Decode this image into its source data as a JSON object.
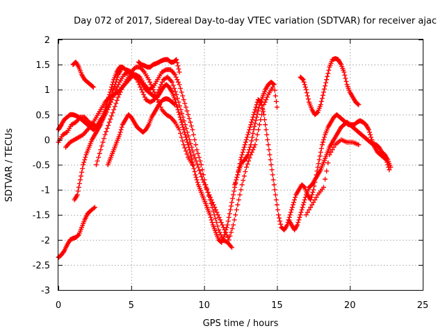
{
  "chart_data": {
    "type": "scatter",
    "title": "Day 072 of 2017, Sidereal Day-to-day VTEC variation (SDTVAR) for receiver ajac",
    "xlabel": "GPS time / hours",
    "ylabel": "SDTVAR / TECUs",
    "xlim": [
      0,
      25
    ],
    "ylim": [
      -3,
      2
    ],
    "xticks": [
      0,
      5,
      10,
      15,
      20,
      25
    ],
    "yticks": [
      -3,
      -2.5,
      -2,
      -1.5,
      -1,
      -0.5,
      0,
      0.5,
      1,
      1.5,
      2
    ],
    "xtick_labels": [
      "0",
      "5",
      "10",
      "15",
      "20",
      "25"
    ],
    "ytick_labels": [
      "-3",
      "-2.5",
      "-2",
      "-1.5",
      "-1",
      "-0.5",
      "0",
      "0.5",
      "1",
      "1.5",
      "2"
    ],
    "grid": true,
    "marker": "plus",
    "color": "#ff0000",
    "series": [
      {
        "name": "track-1",
        "x": [
          0,
          0.2,
          0.4,
          0.6,
          0.8,
          1.0,
          1.2,
          1.4,
          1.6,
          1.8,
          2.0,
          2.2,
          2.5
        ],
        "y": [
          -2.35,
          -2.3,
          -2.22,
          -2.1,
          -2.0,
          -1.97,
          -1.95,
          -1.9,
          -1.75,
          -1.6,
          -1.48,
          -1.42,
          -1.35
        ]
      },
      {
        "name": "track-2",
        "x": [
          0,
          0.1,
          0.2,
          0.4,
          0.6,
          0.8,
          1.0,
          1.2,
          1.4,
          1.6,
          1.8,
          2.0,
          2.2,
          2.4,
          2.6,
          2.8,
          3.0,
          3.2,
          3.4,
          3.6,
          3.8,
          4.0,
          4.2,
          4.4,
          4.6,
          4.8,
          5.0,
          5.2,
          5.4,
          5.6,
          5.8,
          6.0,
          6.2,
          6.4,
          6.6,
          6.8,
          7.0,
          7.2,
          7.4,
          7.6,
          7.8,
          8.0,
          8.2,
          8.4,
          8.6,
          8.8,
          9.0,
          9.2,
          9.4,
          9.6,
          9.8,
          10.0,
          10.2,
          10.4,
          10.6,
          10.8,
          11.0,
          11.2,
          11.4,
          11.6,
          11.8,
          12.0,
          12.2,
          12.4,
          12.6,
          12.8,
          13.0,
          13.2,
          13.4,
          13.6,
          13.8,
          14.0,
          14.2,
          14.4,
          14.6,
          14.8,
          15.0
        ],
        "y": [
          0.2,
          0.25,
          0.3,
          0.4,
          0.45,
          0.5,
          0.5,
          0.48,
          0.45,
          0.4,
          0.35,
          0.3,
          0.25,
          0.2,
          0.25,
          0.35,
          0.45,
          0.6,
          0.8,
          1.0,
          1.2,
          1.35,
          1.45,
          1.45,
          1.4,
          1.38,
          1.35,
          1.3,
          1.25,
          1.2,
          1.1,
          1.0,
          0.95,
          0.9,
          0.85,
          0.85,
          0.95,
          1.05,
          1.1,
          1.05,
          0.95,
          0.8,
          0.6,
          0.4,
          0.2,
          0.0,
          -0.2,
          -0.45,
          -0.7,
          -0.9,
          -1.05,
          -1.2,
          -1.35,
          -1.5,
          -1.7,
          -1.85,
          -2.0,
          -2.05,
          -1.9,
          -1.7,
          -1.4,
          -1.1,
          -0.8,
          -0.6,
          -0.45,
          -0.4,
          -0.3,
          -0.1,
          0.2,
          0.45,
          0.7,
          0.85,
          1.0,
          1.1,
          1.15,
          1.1,
          0.65
        ]
      },
      {
        "name": "track-3",
        "x": [
          0,
          0.3,
          0.6,
          0.9,
          1.2,
          1.5,
          1.8,
          2.1,
          2.4,
          2.7,
          3.0,
          3.3,
          3.6,
          3.9,
          4.2,
          4.5,
          4.8,
          5.1,
          5.4,
          5.7,
          6.0,
          6.3,
          6.6,
          6.9,
          7.2,
          7.5,
          7.8,
          8.1,
          8.4,
          8.7,
          9.0,
          9.3,
          9.6,
          9.9,
          10.2,
          10.5,
          10.8,
          11.1,
          11.4,
          11.7,
          12.0,
          12.3,
          12.6,
          12.9,
          13.2,
          13.5,
          13.8,
          14.1,
          14.4,
          14.7
        ],
        "y": [
          -0.05,
          0.1,
          0.15,
          0.3,
          0.35,
          0.45,
          0.45,
          0.35,
          0.3,
          0.25,
          0.4,
          0.55,
          0.75,
          0.95,
          1.15,
          1.3,
          1.35,
          1.3,
          1.2,
          1.0,
          0.8,
          0.75,
          0.8,
          1.0,
          1.2,
          1.25,
          1.15,
          0.9,
          0.6,
          0.3,
          0.0,
          -0.3,
          -0.55,
          -0.8,
          -1.0,
          -1.2,
          -1.4,
          -1.6,
          -1.8,
          -2.0,
          -1.7,
          -1.3,
          -0.9,
          -0.55,
          -0.3,
          -0.1,
          0.3,
          0.7,
          0.9,
          1.05
        ]
      },
      {
        "name": "track-4",
        "x": [
          0.5,
          0.8,
          1.1,
          1.4,
          1.7,
          2.0,
          2.3,
          2.6,
          2.9,
          3.2,
          3.5,
          3.8,
          4.1,
          4.4,
          4.7,
          5.0,
          5.3,
          5.6,
          5.9,
          6.2,
          6.5,
          6.8,
          7.1,
          7.4,
          7.7,
          8.0,
          8.3,
          8.6,
          8.9,
          9.2,
          9.5,
          9.8,
          10.1,
          10.4,
          10.7,
          11.0,
          11.3,
          11.6,
          11.9
        ],
        "y": [
          -0.15,
          -0.05,
          0.0,
          0.05,
          0.1,
          0.2,
          0.3,
          0.45,
          0.6,
          0.75,
          0.85,
          0.9,
          0.95,
          1.05,
          1.15,
          1.25,
          1.3,
          1.25,
          1.1,
          1.0,
          1.05,
          1.2,
          1.35,
          1.4,
          1.4,
          1.3,
          1.1,
          0.8,
          0.5,
          0.2,
          -0.2,
          -0.5,
          -0.9,
          -1.2,
          -1.5,
          -1.8,
          -2.0,
          -2.05,
          -2.15
        ]
      },
      {
        "name": "track-5",
        "x": [
          1.0,
          1.2,
          1.4,
          1.6,
          1.8,
          2.0,
          2.2,
          2.4
        ],
        "y": [
          1.5,
          1.55,
          1.45,
          1.3,
          1.2,
          1.15,
          1.1,
          1.05
        ]
      },
      {
        "name": "track-6",
        "x": [
          1.1,
          1.3,
          1.5,
          1.7,
          1.9,
          2.1,
          2.3,
          2.5,
          2.7,
          2.9,
          3.1,
          3.3,
          3.5,
          3.7,
          3.9,
          4.1,
          4.3
        ],
        "y": [
          -1.2,
          -1.1,
          -0.8,
          -0.5,
          -0.3,
          -0.15,
          0.0,
          0.1,
          0.2,
          0.3,
          0.45,
          0.6,
          0.75,
          0.95,
          1.1,
          1.3,
          1.4
        ]
      },
      {
        "name": "track-7",
        "x": [
          2.6,
          2.9,
          3.2,
          3.5,
          3.8,
          4.1,
          4.4,
          4.7,
          5.0,
          5.3,
          5.6,
          5.9,
          6.2,
          6.5,
          6.8,
          7.1,
          7.4,
          7.7,
          8.0,
          8.3,
          8.6,
          8.9,
          9.2
        ],
        "y": [
          -0.5,
          -0.2,
          0.1,
          0.35,
          0.6,
          0.85,
          1.05,
          1.2,
          1.35,
          1.45,
          1.45,
          1.35,
          1.2,
          1.0,
          0.8,
          0.6,
          0.5,
          0.45,
          0.35,
          0.2,
          -0.1,
          -0.35,
          -0.5
        ]
      },
      {
        "name": "track-8",
        "x": [
          3.4,
          3.6,
          3.8,
          4.0,
          4.2,
          4.4,
          4.6,
          4.8,
          5.0,
          5.2,
          5.4,
          5.6,
          5.8,
          6.0,
          6.2,
          6.4,
          6.6,
          6.8,
          7.0,
          7.2,
          7.4,
          7.6,
          7.8,
          8.0
        ],
        "y": [
          -0.5,
          -0.35,
          -0.2,
          -0.05,
          0.1,
          0.3,
          0.4,
          0.5,
          0.45,
          0.35,
          0.25,
          0.2,
          0.15,
          0.2,
          0.3,
          0.45,
          0.55,
          0.65,
          0.75,
          0.8,
          0.82,
          0.8,
          0.75,
          0.7
        ]
      },
      {
        "name": "track-9",
        "x": [
          5.5,
          5.7,
          5.9,
          6.1,
          6.3,
          6.5,
          6.7,
          6.9,
          7.1,
          7.3,
          7.5,
          7.7,
          7.9,
          8.1,
          8.3
        ],
        "y": [
          1.55,
          1.5,
          1.48,
          1.45,
          1.45,
          1.5,
          1.52,
          1.55,
          1.58,
          1.6,
          1.6,
          1.55,
          1.55,
          1.6,
          1.35
        ]
      },
      {
        "name": "track-10",
        "x": [
          12.1,
          12.3,
          12.5,
          12.7,
          12.9,
          13.1,
          13.3,
          13.5,
          13.7,
          13.9,
          14.1,
          14.3,
          14.5,
          14.7,
          14.9,
          15.1,
          15.3,
          15.5,
          15.7,
          15.9,
          16.1,
          16.3,
          16.5,
          16.7,
          16.9,
          17.1,
          17.3,
          17.5,
          17.7,
          17.9,
          18.1,
          18.3,
          18.5,
          18.7,
          18.9,
          19.1,
          19.3,
          19.5,
          19.7,
          19.9,
          20.1,
          20.3,
          20.5,
          20.7,
          20.9,
          21.1,
          21.3,
          21.5,
          21.7,
          21.9,
          22.1,
          22.3,
          22.5,
          22.7
        ],
        "y": [
          -0.9,
          -0.7,
          -0.4,
          -0.2,
          0.0,
          0.2,
          0.4,
          0.6,
          0.8,
          0.75,
          0.5,
          0.1,
          -0.3,
          -0.7,
          -1.1,
          -1.5,
          -1.75,
          -1.8,
          -1.7,
          -1.5,
          -1.3,
          -1.1,
          -1.0,
          -0.9,
          -0.95,
          -1.1,
          -1.2,
          -1.0,
          -0.7,
          -0.4,
          -0.1,
          0.1,
          0.25,
          0.35,
          0.45,
          0.5,
          0.45,
          0.4,
          0.35,
          0.3,
          0.3,
          0.3,
          0.35,
          0.38,
          0.35,
          0.3,
          0.2,
          0.0,
          -0.15,
          -0.25,
          -0.3,
          -0.35,
          -0.4,
          -0.6
        ]
      },
      {
        "name": "track-11",
        "x": [
          15.8,
          16.0,
          16.2,
          16.4,
          16.6,
          16.8,
          17.0,
          17.2,
          17.4,
          17.6,
          17.8,
          18.0,
          18.2,
          18.4,
          18.6,
          18.8,
          19.0,
          19.2,
          19.4,
          19.6,
          19.8,
          20.0,
          20.2,
          20.4,
          20.6,
          20.8,
          21.0,
          21.2,
          21.4,
          21.6,
          21.8,
          22.0,
          22.2,
          22.4,
          22.6,
          22.8
        ],
        "y": [
          -1.6,
          -1.7,
          -1.8,
          -1.7,
          -1.5,
          -1.3,
          -1.1,
          -0.95,
          -0.9,
          -0.8,
          -0.7,
          -0.6,
          -0.45,
          -0.3,
          -0.15,
          -0.05,
          0.05,
          0.15,
          0.25,
          0.3,
          0.35,
          0.3,
          0.25,
          0.2,
          0.15,
          0.1,
          0.05,
          0.0,
          -0.05,
          -0.1,
          -0.1,
          -0.15,
          -0.25,
          -0.3,
          -0.4,
          -0.55
        ]
      },
      {
        "name": "track-12",
        "x": [
          16.6,
          16.8,
          17.0,
          17.2,
          17.4,
          17.6,
          17.8,
          18.0,
          18.2,
          18.4,
          18.6,
          18.8,
          19.0,
          19.2,
          19.4,
          19.6,
          19.8,
          20.0,
          20.2,
          20.4,
          20.6
        ],
        "y": [
          1.25,
          1.2,
          1.0,
          0.75,
          0.6,
          0.5,
          0.55,
          0.7,
          0.95,
          1.2,
          1.45,
          1.6,
          1.62,
          1.6,
          1.5,
          1.35,
          1.1,
          0.95,
          0.85,
          0.75,
          0.7
        ]
      },
      {
        "name": "track-13",
        "x": [
          17.0,
          17.4,
          17.8,
          18.2,
          18.6,
          19.0,
          19.4,
          19.8,
          20.2,
          20.6
        ],
        "y": [
          -1.5,
          -1.3,
          -1.1,
          -0.95,
          -0.3,
          -0.1,
          0.0,
          -0.05,
          -0.05,
          -0.1
        ]
      }
    ]
  }
}
